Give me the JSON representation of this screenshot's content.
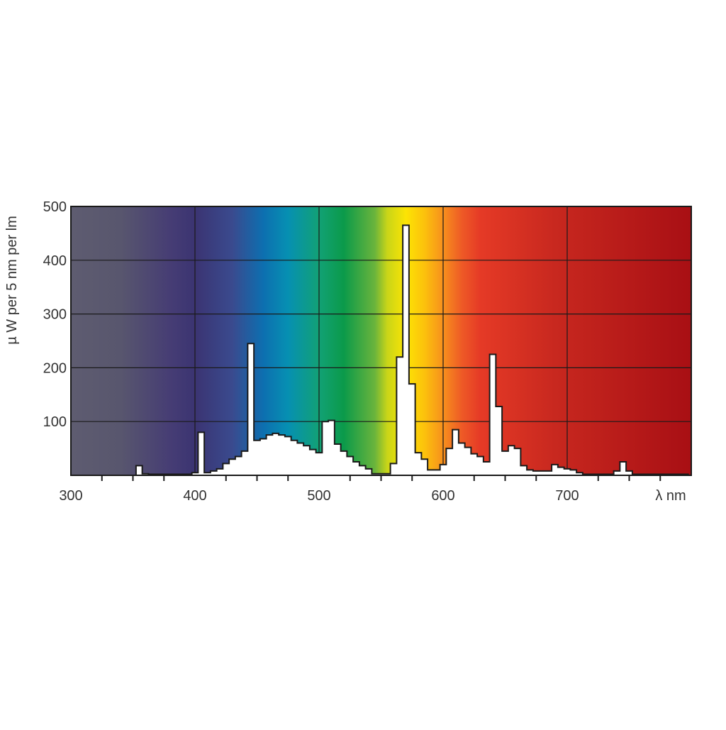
{
  "chart_data": {
    "type": "area",
    "xlabel": "λ nm",
    "ylabel": "µ W per 5 nm per lm",
    "xlim": [
      300,
      800
    ],
    "ylim": [
      0,
      500
    ],
    "x_ticks": [
      "300",
      "400",
      "500",
      "600",
      "700"
    ],
    "y_ticks": [
      "100",
      "200",
      "300",
      "400",
      "500"
    ],
    "grid": true,
    "background": "visible light spectrum gradient (violet to deep red)",
    "bin_width_nm": 5,
    "series": [
      {
        "x": [
          355,
          360,
          365,
          370,
          375,
          380,
          385,
          390,
          395,
          400,
          405,
          410,
          415,
          420,
          425,
          430,
          435,
          440,
          445,
          450,
          455,
          460,
          465,
          470,
          475,
          480,
          485,
          490,
          495,
          500,
          505,
          510,
          515,
          520,
          525,
          530,
          535,
          540,
          545,
          550,
          555,
          560,
          565,
          570,
          575,
          580,
          585,
          590,
          595,
          600,
          605,
          610,
          615,
          620,
          625,
          630,
          635,
          640,
          645,
          650,
          655,
          660,
          665,
          670,
          675,
          680,
          685,
          690,
          695,
          700,
          705,
          710,
          715,
          720,
          725,
          730,
          735,
          740,
          745,
          750,
          755,
          760,
          765,
          770,
          775,
          780,
          785,
          790,
          795
        ],
        "values": [
          18,
          3,
          2,
          2,
          2,
          2,
          2,
          2,
          2,
          5,
          80,
          5,
          8,
          12,
          22,
          30,
          35,
          45,
          245,
          65,
          68,
          75,
          78,
          75,
          72,
          65,
          60,
          55,
          48,
          42,
          100,
          102,
          58,
          45,
          35,
          25,
          18,
          12,
          3,
          3,
          3,
          22,
          220,
          465,
          170,
          42,
          30,
          10,
          10,
          20,
          50,
          85,
          60,
          52,
          40,
          35,
          25,
          225,
          128,
          45,
          55,
          50,
          18,
          10,
          8,
          8,
          8,
          20,
          15,
          12,
          10,
          5,
          2,
          2,
          2,
          2,
          2,
          8,
          25,
          8,
          2,
          2,
          2,
          2,
          2,
          2,
          2,
          2,
          2
        ]
      }
    ]
  }
}
